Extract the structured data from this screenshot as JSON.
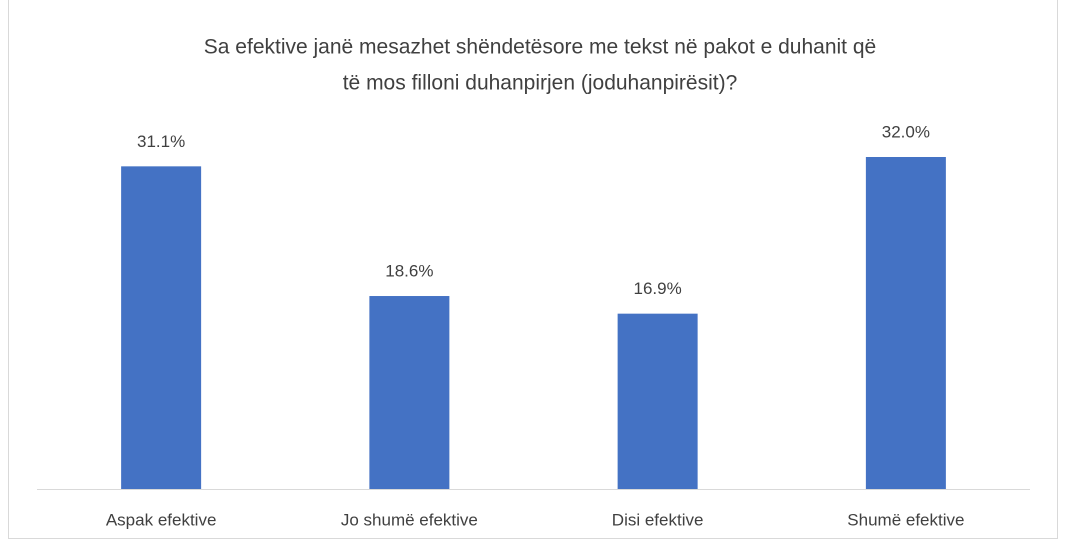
{
  "chart_data": {
    "type": "bar",
    "title": [
      "Sa efektive janë mesazhet shëndetësore me tekst në pakot e duhanit që",
      "të mos filloni duhanpirjen (joduhanpirësit)?"
    ],
    "categories": [
      "Aspak efektive",
      "Jo shumë efektive",
      "Disi efektive",
      "Shumë efektive"
    ],
    "values": [
      31.1,
      18.6,
      16.9,
      32.0
    ],
    "value_labels": [
      "31.1%",
      "18.6%",
      "16.9%",
      "32.0%"
    ],
    "color": "#4472c4"
  }
}
